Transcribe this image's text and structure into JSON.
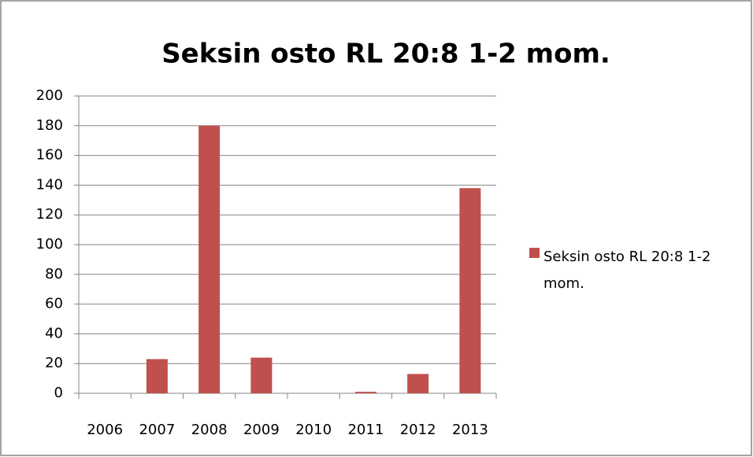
{
  "chart_data": {
    "type": "bar",
    "title": "Seksin osto RL 20:8 1-2 mom.",
    "categories": [
      "2006",
      "2007",
      "2008",
      "2009",
      "2010",
      "2011",
      "2012",
      "2013"
    ],
    "series": [
      {
        "name": "Seksin osto RL 20:8 1-2 mom.",
        "color": "#c0504d",
        "values": [
          0,
          23,
          180,
          24,
          0,
          1,
          13,
          138
        ]
      }
    ],
    "ylim": [
      0,
      200
    ],
    "yticks": [
      0,
      20,
      40,
      60,
      80,
      100,
      120,
      140,
      160,
      180,
      200
    ],
    "grid": true,
    "legend": "right"
  }
}
